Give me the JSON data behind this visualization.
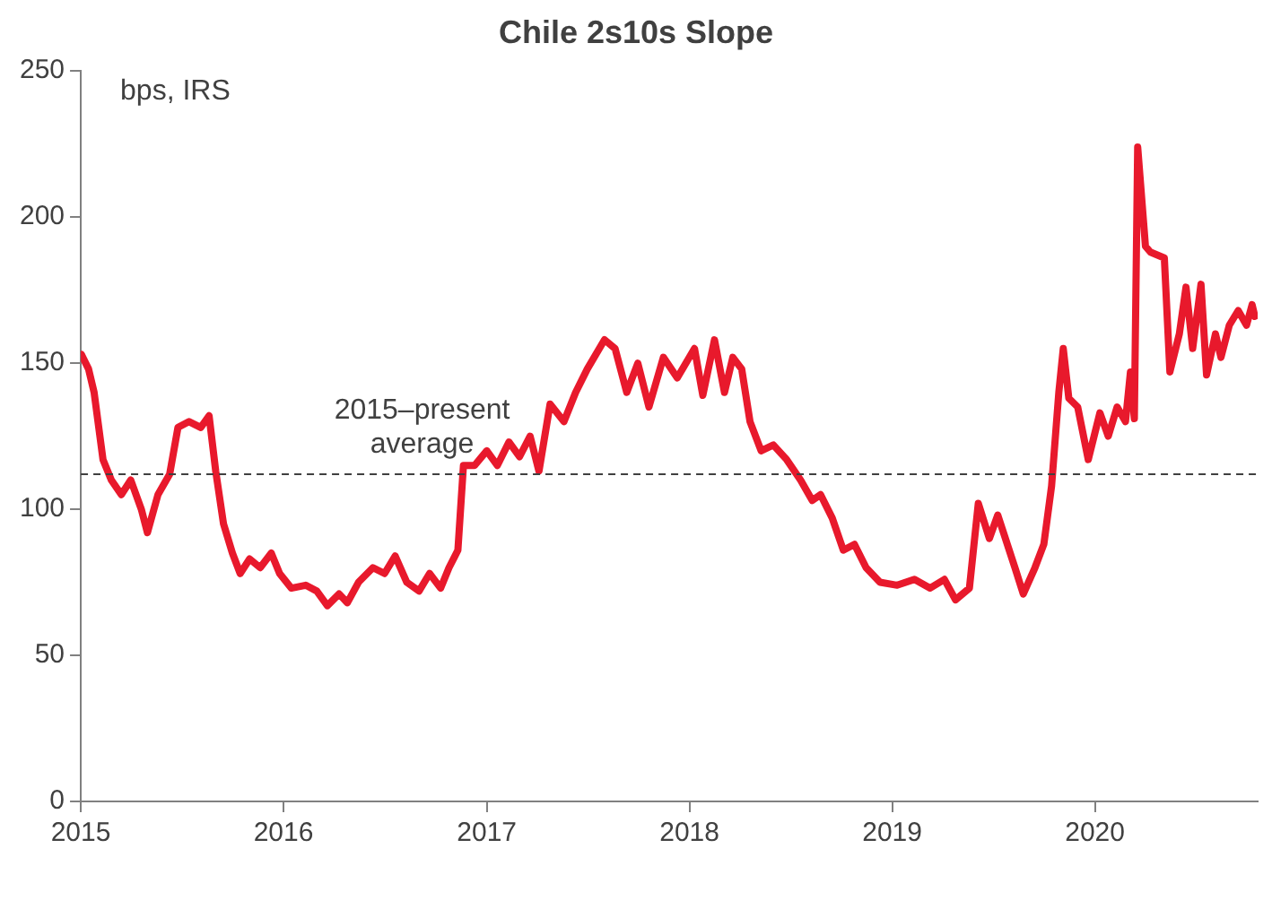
{
  "chart_data": {
    "type": "line",
    "title": "Chile 2s10s Slope",
    "annotations": [
      "bps, IRS"
    ],
    "xlim": [
      "2015-01-01",
      "2020-10-20"
    ],
    "xticks": [
      "2015",
      "2016",
      "2017",
      "2018",
      "2019",
      "2020"
    ],
    "ylim": [
      0,
      250
    ],
    "yticks": [
      0,
      50,
      100,
      150,
      200,
      250
    ],
    "grid": false,
    "legend": false,
    "marker": "none",
    "line_style": "solid",
    "ref_lines": [
      {
        "axis": "y",
        "value": 112,
        "label": "2015–present average",
        "color": "#404040",
        "line_style": "dashed"
      }
    ],
    "series": [
      {
        "color": "#e8192c",
        "x": [
          "2015-01-02",
          "2015-01-15",
          "2015-01-25",
          "2015-02-10",
          "2015-02-25",
          "2015-03-15",
          "2015-04-01",
          "2015-04-20",
          "2015-05-01",
          "2015-05-20",
          "2015-06-10",
          "2015-06-25",
          "2015-07-15",
          "2015-08-05",
          "2015-08-20",
          "2015-09-01",
          "2015-09-15",
          "2015-10-01",
          "2015-10-15",
          "2015-11-01",
          "2015-11-20",
          "2015-12-10",
          "2015-12-25",
          "2016-01-15",
          "2016-02-10",
          "2016-03-01",
          "2016-03-20",
          "2016-04-10",
          "2016-04-25",
          "2016-05-15",
          "2016-06-10",
          "2016-07-01",
          "2016-07-20",
          "2016-08-10",
          "2016-09-01",
          "2016-09-20",
          "2016-10-10",
          "2016-10-25",
          "2016-11-10",
          "2016-11-20",
          "2016-12-10",
          "2017-01-01",
          "2017-01-20",
          "2017-02-10",
          "2017-03-01",
          "2017-03-20",
          "2017-04-05",
          "2017-04-25",
          "2017-05-20",
          "2017-06-10",
          "2017-07-01",
          "2017-08-01",
          "2017-08-20",
          "2017-09-10",
          "2017-09-30",
          "2017-10-20",
          "2017-11-15",
          "2017-12-10",
          "2018-01-10",
          "2018-01-25",
          "2018-02-15",
          "2018-03-05",
          "2018-03-20",
          "2018-04-05",
          "2018-04-20",
          "2018-05-10",
          "2018-06-01",
          "2018-06-25",
          "2018-07-20",
          "2018-08-10",
          "2018-08-25",
          "2018-09-15",
          "2018-10-05",
          "2018-10-25",
          "2018-11-15",
          "2018-12-10",
          "2019-01-10",
          "2019-02-10",
          "2019-03-10",
          "2019-04-05",
          "2019-04-25",
          "2019-05-20",
          "2019-06-05",
          "2019-06-25",
          "2019-07-10",
          "2019-08-10",
          "2019-08-25",
          "2019-09-15",
          "2019-10-01",
          "2019-10-15",
          "2019-10-28",
          "2019-11-05",
          "2019-11-15",
          "2019-12-01",
          "2019-12-20",
          "2020-01-10",
          "2020-01-25",
          "2020-02-10",
          "2020-02-25",
          "2020-03-05",
          "2020-03-12",
          "2020-03-18",
          "2020-04-01",
          "2020-04-10",
          "2020-05-05",
          "2020-05-15",
          "2020-06-01",
          "2020-06-13",
          "2020-06-25",
          "2020-07-10",
          "2020-07-20",
          "2020-08-05",
          "2020-08-15",
          "2020-08-30",
          "2020-09-15",
          "2020-09-30",
          "2020-10-10",
          "2020-10-15"
        ],
        "values": [
          153,
          148,
          140,
          117,
          110,
          105,
          110,
          100,
          92,
          105,
          112,
          128,
          130,
          128,
          132,
          113,
          95,
          85,
          78,
          83,
          80,
          85,
          78,
          73,
          74,
          72,
          67,
          71,
          68,
          75,
          80,
          78,
          84,
          75,
          72,
          78,
          73,
          80,
          86,
          115,
          115,
          120,
          115,
          123,
          118,
          125,
          113,
          136,
          130,
          140,
          148,
          158,
          155,
          140,
          150,
          135,
          152,
          145,
          155,
          139,
          158,
          140,
          152,
          148,
          130,
          120,
          122,
          117,
          110,
          103,
          105,
          97,
          86,
          88,
          80,
          75,
          74,
          76,
          73,
          76,
          69,
          73,
          102,
          90,
          98,
          80,
          71,
          80,
          88,
          108,
          140,
          155,
          138,
          135,
          117,
          133,
          125,
          135,
          130,
          147,
          131,
          224,
          190,
          188,
          186,
          147,
          160,
          176,
          155,
          177,
          146,
          160,
          152,
          163,
          168,
          163,
          170,
          166
        ]
      }
    ]
  }
}
